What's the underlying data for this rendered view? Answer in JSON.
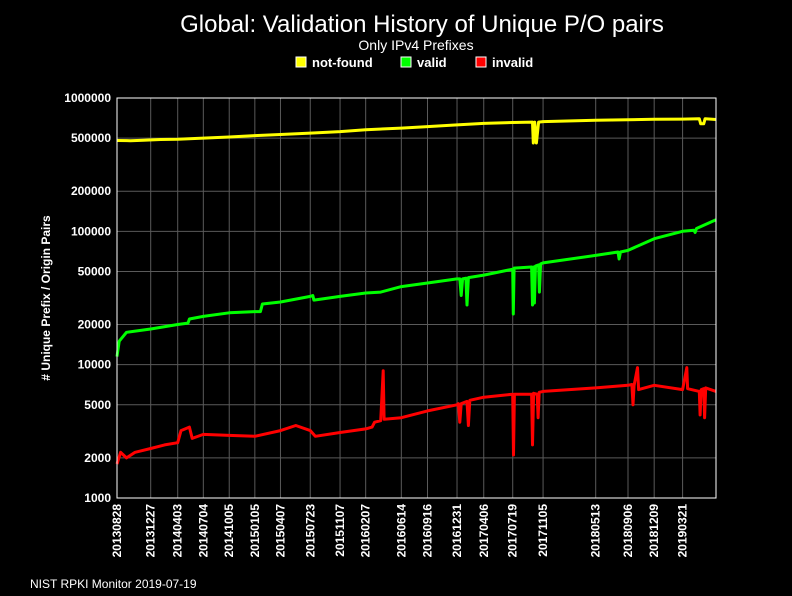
{
  "footer": "NIST RPKI Monitor 2019-07-19",
  "colors": {
    "not_found": "#ffff00",
    "valid": "#00ff00",
    "invalid": "#ff0000",
    "grid": "#5a5a5a",
    "frame": "#ffffff"
  },
  "chart_data": {
    "type": "line",
    "title": "Global: Validation History of Unique P/O pairs",
    "subtitle": "Only IPv4 Prefixes",
    "ylabel": "# Unique Prefix / Origin Pairs",
    "xlabel": "",
    "yscale": "log",
    "ylim": [
      1000,
      1000000
    ],
    "y_ticks": [
      1000,
      2000,
      5000,
      10000,
      20000,
      50000,
      100000,
      200000,
      500000,
      1000000
    ],
    "xlim": [
      "2013-08-28",
      "2019-07-19"
    ],
    "x_ticks": [
      "20130828",
      "20131227",
      "20140403",
      "20140704",
      "20141005",
      "20150105",
      "20150407",
      "20150723",
      "20151107",
      "20160207",
      "20160614",
      "20160916",
      "20161231",
      "20170406",
      "20170719",
      "20171105",
      "20180513",
      "20180906",
      "20181209",
      "20190321"
    ],
    "grid": true,
    "legend": "top-center",
    "series": [
      {
        "name": "not-found",
        "color": "#ffff00",
        "points": [
          [
            "2013-08-28",
            480000
          ],
          [
            "2013-10-15",
            478000
          ],
          [
            "2013-12-01",
            482000
          ],
          [
            "2014-02-01",
            488000
          ],
          [
            "2014-04-03",
            490000
          ],
          [
            "2014-07-04",
            500000
          ],
          [
            "2014-10-05",
            510000
          ],
          [
            "2015-01-05",
            522000
          ],
          [
            "2015-04-07",
            532000
          ],
          [
            "2015-07-23",
            545000
          ],
          [
            "2015-11-07",
            560000
          ],
          [
            "2016-02-07",
            578000
          ],
          [
            "2016-06-14",
            595000
          ],
          [
            "2016-09-16",
            610000
          ],
          [
            "2016-12-31",
            628000
          ],
          [
            "2017-04-06",
            645000
          ],
          [
            "2017-07-19",
            655000
          ],
          [
            "2017-09-28",
            660000
          ],
          [
            "2017-10-01",
            460000
          ],
          [
            "2017-10-06",
            660000
          ],
          [
            "2017-10-12",
            460000
          ],
          [
            "2017-10-20",
            660000
          ],
          [
            "2017-11-05",
            665000
          ],
          [
            "2018-05-13",
            680000
          ],
          [
            "2018-09-06",
            688000
          ],
          [
            "2018-12-09",
            692000
          ],
          [
            "2019-03-21",
            695000
          ],
          [
            "2019-05-20",
            698000
          ],
          [
            "2019-05-25",
            640000
          ],
          [
            "2019-06-05",
            640000
          ],
          [
            "2019-06-10",
            700000
          ],
          [
            "2019-07-19",
            690000
          ]
        ]
      },
      {
        "name": "valid",
        "color": "#00ff00",
        "points": [
          [
            "2013-08-28",
            11500
          ],
          [
            "2013-09-05",
            15000
          ],
          [
            "2013-10-01",
            17500
          ],
          [
            "2013-12-27",
            18500
          ],
          [
            "2014-04-03",
            20000
          ],
          [
            "2014-05-10",
            20500
          ],
          [
            "2014-05-15",
            22000
          ],
          [
            "2014-07-04",
            23000
          ],
          [
            "2014-10-05",
            24500
          ],
          [
            "2015-01-05",
            25000
          ],
          [
            "2015-01-25",
            25000
          ],
          [
            "2015-02-01",
            28500
          ],
          [
            "2015-04-07",
            29500
          ],
          [
            "2015-07-23",
            32500
          ],
          [
            "2015-08-01",
            33000
          ],
          [
            "2015-08-05",
            30500
          ],
          [
            "2015-11-07",
            32500
          ],
          [
            "2016-02-07",
            34500
          ],
          [
            "2016-04-01",
            35000
          ],
          [
            "2016-06-14",
            38500
          ],
          [
            "2016-09-16",
            41000
          ],
          [
            "2016-12-31",
            44000
          ],
          [
            "2017-01-10",
            44000
          ],
          [
            "2017-01-15",
            33000
          ],
          [
            "2017-01-20",
            44000
          ],
          [
            "2017-02-01",
            44500
          ],
          [
            "2017-02-05",
            28000
          ],
          [
            "2017-02-10",
            45000
          ],
          [
            "2017-04-06",
            47000
          ],
          [
            "2017-07-19",
            52000
          ],
          [
            "2017-07-21",
            24000
          ],
          [
            "2017-07-24",
            53000
          ],
          [
            "2017-09-25",
            54000
          ],
          [
            "2017-09-28",
            28000
          ],
          [
            "2017-10-02",
            54000
          ],
          [
            "2017-10-05",
            29000
          ],
          [
            "2017-10-09",
            55000
          ],
          [
            "2017-10-20",
            56000
          ],
          [
            "2017-10-23",
            35000
          ],
          [
            "2017-10-27",
            57000
          ],
          [
            "2017-11-05",
            58000
          ],
          [
            "2018-05-13",
            66000
          ],
          [
            "2018-08-01",
            70000
          ],
          [
            "2018-08-05",
            62000
          ],
          [
            "2018-08-10",
            70000
          ],
          [
            "2018-09-06",
            72000
          ],
          [
            "2018-12-09",
            88000
          ],
          [
            "2019-03-21",
            100000
          ],
          [
            "2019-05-01",
            102000
          ],
          [
            "2019-05-05",
            98000
          ],
          [
            "2019-05-10",
            105000
          ],
          [
            "2019-07-19",
            122000
          ]
        ]
      },
      {
        "name": "invalid",
        "color": "#ff0000",
        "points": [
          [
            "2013-08-28",
            1800
          ],
          [
            "2013-09-10",
            2200
          ],
          [
            "2013-10-01",
            2000
          ],
          [
            "2013-11-01",
            2200
          ],
          [
            "2013-12-27",
            2350
          ],
          [
            "2014-02-15",
            2500
          ],
          [
            "2014-04-03",
            2600
          ],
          [
            "2014-04-15",
            3200
          ],
          [
            "2014-05-15",
            3400
          ],
          [
            "2014-05-25",
            2800
          ],
          [
            "2014-07-04",
            3000
          ],
          [
            "2014-10-05",
            2950
          ],
          [
            "2015-01-05",
            2900
          ],
          [
            "2015-04-07",
            3200
          ],
          [
            "2015-06-01",
            3500
          ],
          [
            "2015-07-23",
            3200
          ],
          [
            "2015-08-10",
            2900
          ],
          [
            "2015-11-07",
            3100
          ],
          [
            "2016-02-07",
            3300
          ],
          [
            "2016-03-01",
            3400
          ],
          [
            "2016-03-10",
            3700
          ],
          [
            "2016-04-01",
            3800
          ],
          [
            "2016-04-10",
            9000
          ],
          [
            "2016-04-13",
            3900
          ],
          [
            "2016-06-14",
            4000
          ],
          [
            "2016-09-16",
            4500
          ],
          [
            "2016-12-31",
            5000
          ],
          [
            "2017-01-05",
            5100
          ],
          [
            "2017-01-10",
            3700
          ],
          [
            "2017-01-15",
            5100
          ],
          [
            "2017-02-05",
            5300
          ],
          [
            "2017-02-10",
            3500
          ],
          [
            "2017-02-15",
            5400
          ],
          [
            "2017-04-06",
            5700
          ],
          [
            "2017-07-19",
            6000
          ],
          [
            "2017-07-22",
            2100
          ],
          [
            "2017-07-25",
            6000
          ],
          [
            "2017-09-25",
            6000
          ],
          [
            "2017-09-28",
            2500
          ],
          [
            "2017-10-02",
            6100
          ],
          [
            "2017-10-15",
            6000
          ],
          [
            "2017-10-18",
            4000
          ],
          [
            "2017-10-22",
            6200
          ],
          [
            "2017-11-05",
            6300
          ],
          [
            "2018-05-13",
            6700
          ],
          [
            "2018-09-06",
            7000
          ],
          [
            "2018-09-20",
            7100
          ],
          [
            "2018-09-24",
            5000
          ],
          [
            "2018-09-28",
            7000
          ],
          [
            "2018-10-10",
            9500
          ],
          [
            "2018-10-14",
            6500
          ],
          [
            "2018-12-09",
            7000
          ],
          [
            "2019-03-21",
            6500
          ],
          [
            "2019-04-05",
            9500
          ],
          [
            "2019-04-08",
            6600
          ],
          [
            "2019-05-20",
            6300
          ],
          [
            "2019-05-23",
            4200
          ],
          [
            "2019-05-27",
            6500
          ],
          [
            "2019-06-05",
            6600
          ],
          [
            "2019-06-08",
            4000
          ],
          [
            "2019-06-12",
            6700
          ],
          [
            "2019-07-19",
            6300
          ]
        ]
      }
    ]
  }
}
